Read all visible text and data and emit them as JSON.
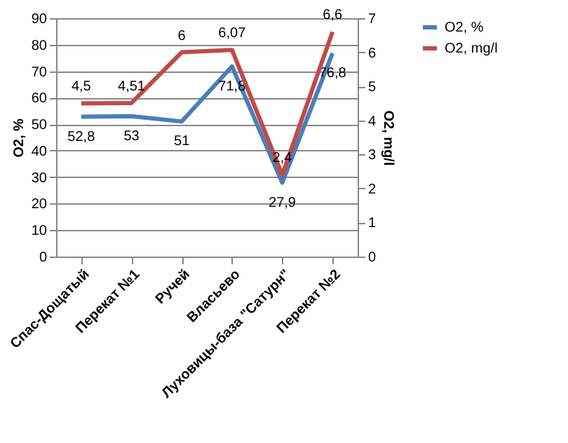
{
  "chart_data": {
    "type": "line",
    "categories": [
      "Спас-Дощатый",
      "Перекат №1",
      "Ручей",
      "Власьево",
      "Луховицы-база \"Сатурн\"",
      "Перекат №2"
    ],
    "series": [
      {
        "name": "O2, %",
        "color": "#4a7ebb",
        "values": [
          52.8,
          53,
          51,
          71.8,
          27.9,
          76.8
        ],
        "value_labels": [
          "52,8",
          "53",
          "51",
          "71,8",
          "27,9",
          "76,8"
        ]
      },
      {
        "name": "O2, mg/l",
        "color": "#be4b48",
        "axis": "y2",
        "values": [
          4.5,
          4.51,
          6,
          6.07,
          2.4,
          6.6
        ],
        "value_labels": [
          "4,5",
          "4,51",
          "6",
          "6,07",
          "2,4",
          "6,6"
        ]
      }
    ],
    "ylabel": "O2, %",
    "y2label": "O2, mg/l",
    "ylim": [
      0,
      90
    ],
    "yticks": [
      0,
      10,
      20,
      30,
      40,
      50,
      60,
      70,
      80,
      90
    ],
    "y2lim": [
      0,
      7
    ],
    "y2ticks": [
      0,
      1,
      2,
      3,
      4,
      5,
      6,
      7
    ],
    "grid": "y",
    "legend": "right",
    "marker": "none",
    "line_style": "solid"
  }
}
